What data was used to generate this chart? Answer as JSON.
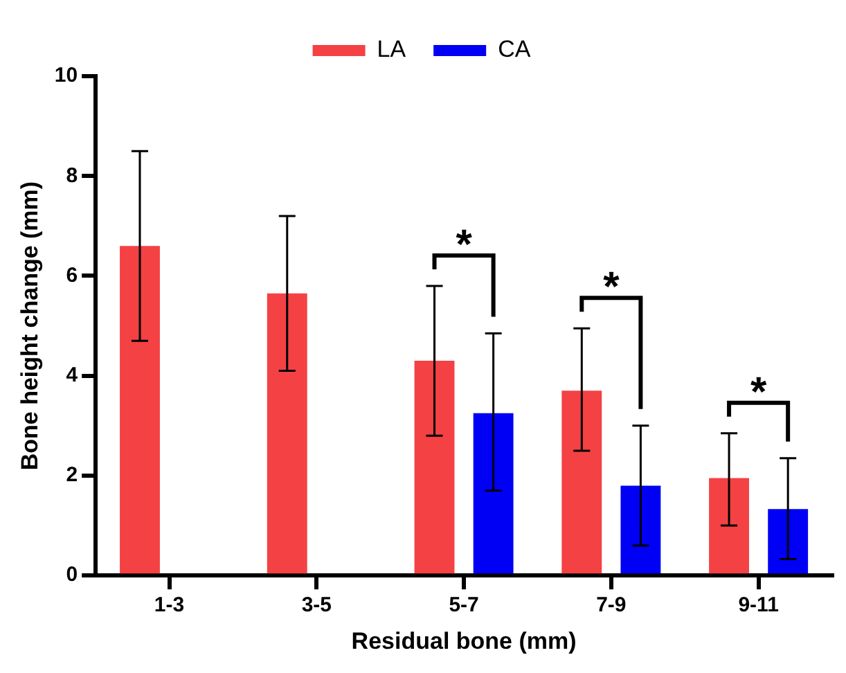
{
  "chart_data": {
    "type": "bar",
    "xlabel": "Residual bone (mm)",
    "ylabel": "Bone height change (mm)",
    "categories": [
      "1-3",
      "3-5",
      "5-7",
      "7-9",
      "9-11"
    ],
    "series": [
      {
        "name": "LA",
        "color": "#f44144",
        "values": [
          6.6,
          5.65,
          4.3,
          3.7,
          1.95
        ],
        "errors": [
          [
            4.7,
            8.5
          ],
          [
            4.1,
            7.2
          ],
          [
            2.8,
            5.8
          ],
          [
            2.5,
            4.95
          ],
          [
            1.0,
            2.85
          ]
        ]
      },
      {
        "name": "CA",
        "color": "#0000f5",
        "values": [
          null,
          null,
          3.25,
          1.8,
          1.33
        ],
        "errors": [
          null,
          null,
          [
            1.7,
            4.85
          ],
          [
            0.6,
            3.0
          ],
          [
            0.33,
            2.35
          ]
        ]
      }
    ],
    "ylim": [
      0,
      10
    ],
    "yticks": [
      0,
      2,
      4,
      6,
      8,
      10
    ],
    "grid": false,
    "legend": "top",
    "annotations": [
      "*",
      "*",
      "*"
    ]
  }
}
